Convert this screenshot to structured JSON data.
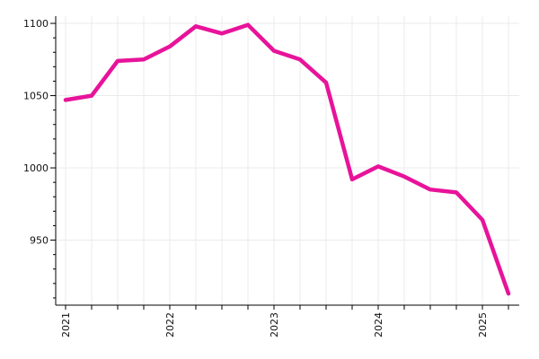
{
  "chart_data": {
    "type": "line",
    "title": "",
    "xlabel": "",
    "ylabel": "",
    "x": [
      "2021-01",
      "2021-04",
      "2021-07",
      "2021-10",
      "2022-01",
      "2022-04",
      "2022-07",
      "2022-10",
      "2023-01",
      "2023-04",
      "2023-07",
      "2023-10",
      "2024-01",
      "2024-04",
      "2024-07",
      "2024-10",
      "2025-01",
      "2025-04"
    ],
    "series": [
      {
        "values": [
          1047,
          1050,
          1074,
          1075,
          1084,
          1098,
          1093,
          1099,
          1081,
          1075,
          1059,
          992,
          1001,
          994,
          985,
          983,
          964,
          913
        ]
      }
    ],
    "xlim": [
      "2021-01",
      "2025-04"
    ],
    "ylim": [
      905,
      1105
    ],
    "x_ticks": [
      "2021",
      "2022",
      "2023",
      "2024",
      "2025"
    ],
    "y_ticks": [
      950,
      1000,
      1050,
      1100
    ],
    "grid": true,
    "line_color": "#e8139a",
    "legend": false
  }
}
